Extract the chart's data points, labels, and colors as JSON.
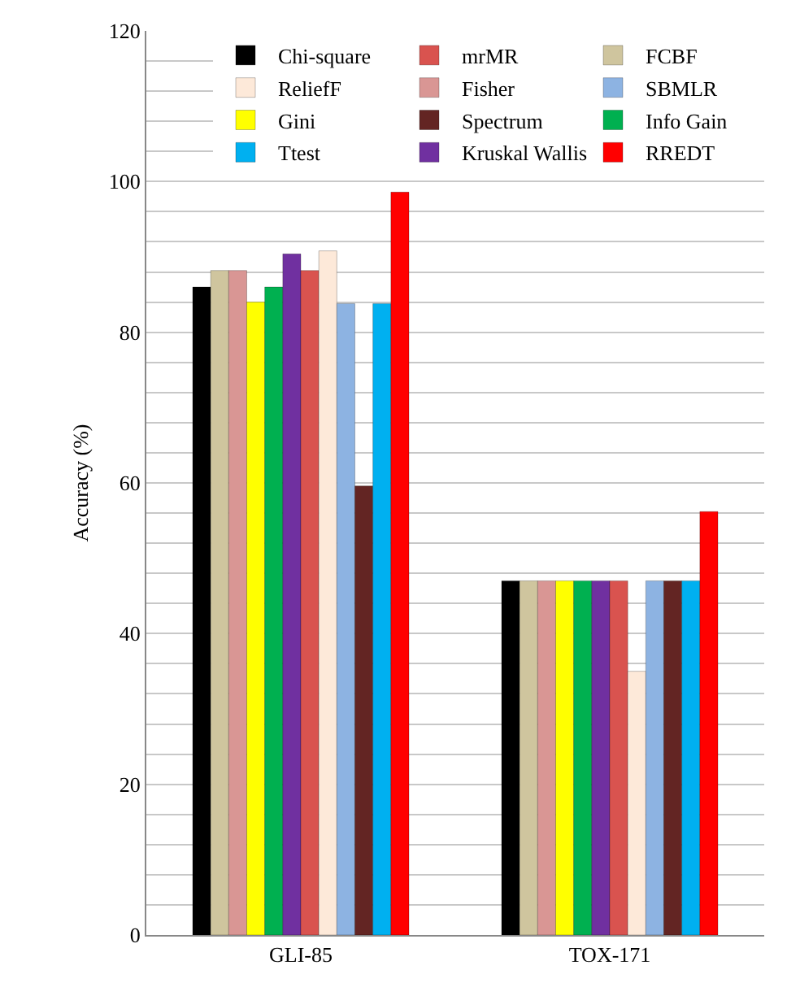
{
  "chart_data": {
    "type": "bar",
    "ylabel": "Accuracy (%)",
    "categories": [
      "GLI-85",
      "TOX-171"
    ],
    "series": [
      {
        "name": "Chi-square",
        "color": "#000000",
        "values": [
          86,
          47
        ]
      },
      {
        "name": "FCBF",
        "color": "#cfc59e",
        "values": [
          88.2,
          47
        ]
      },
      {
        "name": "Fisher",
        "color": "#d99694",
        "values": [
          88.2,
          47
        ]
      },
      {
        "name": "Gini",
        "color": "#ffff00",
        "values": [
          84,
          47
        ]
      },
      {
        "name": "Info Gain",
        "color": "#00b050",
        "values": [
          86,
          47
        ]
      },
      {
        "name": "Kruskal Wallis",
        "color": "#7030a0",
        "values": [
          90.4,
          47
        ]
      },
      {
        "name": "mrMR",
        "color": "#d9534f",
        "values": [
          88.2,
          47
        ]
      },
      {
        "name": "ReliefF",
        "color": "#fde9d9",
        "values": [
          90.8,
          35
        ]
      },
      {
        "name": "SBMLR",
        "color": "#8db3e2",
        "values": [
          83.8,
          47
        ]
      },
      {
        "name": "Spectrum",
        "color": "#632523",
        "values": [
          59.6,
          47
        ]
      },
      {
        "name": "Ttest",
        "color": "#00b0f0",
        "values": [
          83.8,
          47
        ]
      },
      {
        "name": "RREDT",
        "color": "#ff0000",
        "values": [
          98.6,
          56.2
        ]
      }
    ],
    "ylim": [
      0,
      120
    ],
    "yticks": [
      0,
      {
        "value": 4,
        "label": null
      },
      {
        "value": 8,
        "label": null
      },
      {
        "value": 12,
        "label": null
      },
      {
        "value": 16,
        "label": null
      },
      20,
      {
        "value": 24,
        "label": null
      },
      {
        "value": 28,
        "label": null
      },
      {
        "value": 32,
        "label": null
      },
      {
        "value": 36,
        "label": null
      },
      40,
      {
        "value": 44,
        "label": null
      },
      {
        "value": 48,
        "label": null
      },
      {
        "value": 52,
        "label": null
      },
      {
        "value": 56,
        "label": null
      },
      60,
      {
        "value": 64,
        "label": null
      },
      {
        "value": 68,
        "label": null
      },
      {
        "value": 72,
        "label": null
      },
      {
        "value": 76,
        "label": null
      },
      80,
      {
        "value": 84,
        "label": null
      },
      {
        "value": 88,
        "label": null
      },
      {
        "value": 92,
        "label": null
      },
      {
        "value": 96,
        "label": null
      },
      100,
      {
        "value": 104,
        "label": null
      },
      {
        "value": 108,
        "label": null
      },
      {
        "value": 112,
        "label": null
      },
      {
        "value": 116,
        "label": null
      },
      120
    ],
    "grid": "y",
    "legend": "top right"
  }
}
